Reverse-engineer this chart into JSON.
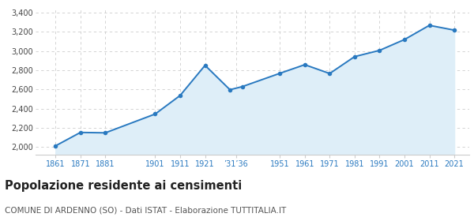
{
  "years": [
    1861,
    1871,
    1881,
    1901,
    1911,
    1921,
    1931,
    1936,
    1951,
    1961,
    1971,
    1981,
    1991,
    2001,
    2011,
    2021
  ],
  "population": [
    2012,
    2152,
    2148,
    2344,
    2537,
    2851,
    2597,
    2630,
    2768,
    2858,
    2766,
    2942,
    3007,
    3120,
    3268,
    3218
  ],
  "line_color": "#2979c0",
  "fill_color": "#deeef8",
  "marker_color": "#2979c0",
  "background_color": "#ffffff",
  "plot_bg_color": "#ffffff",
  "grid_color": "#cccccc",
  "ylim": [
    1920,
    3440
  ],
  "yticks": [
    2000,
    2200,
    2400,
    2600,
    2800,
    3000,
    3200,
    3400
  ],
  "fill_baseline": 1920,
  "title": "Popolazione residente ai censimenti",
  "subtitle": "COMUNE DI ARDENNO (SO) - Dati ISTAT - Elaborazione TUTTITALIA.IT",
  "title_fontsize": 10.5,
  "subtitle_fontsize": 7.5,
  "title_color": "#222222",
  "subtitle_color": "#555555",
  "ytick_color": "#444444",
  "xtick_color": "#2979c0",
  "tick_fontsize": 7,
  "xlim_left": 1853,
  "xlim_right": 2027
}
